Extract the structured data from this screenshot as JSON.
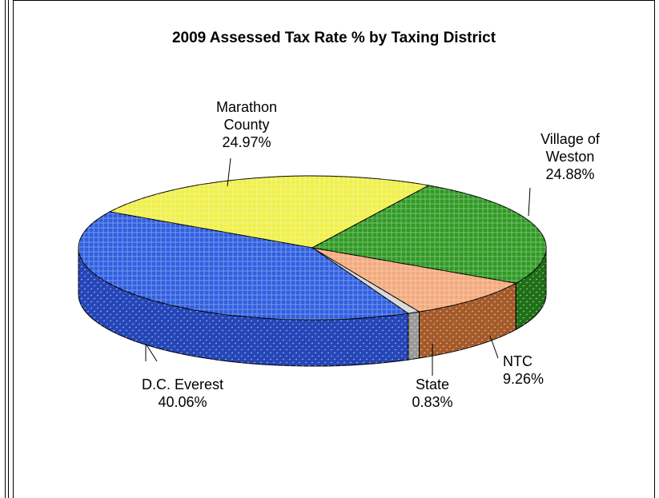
{
  "chart_data": {
    "type": "pie",
    "title": "2009 Assessed Tax Rate % by Taxing District",
    "slices": [
      {
        "name": "Marathon County",
        "label_lines": [
          "Marathon",
          "County"
        ],
        "value": 24.97,
        "value_label": "24.97%",
        "color": "#f0f04a",
        "side_color": "#c8c836"
      },
      {
        "name": "Village of Weston",
        "label_lines": [
          "Village of",
          "Weston"
        ],
        "value": 24.88,
        "value_label": "24.88%",
        "color": "#2f9a24",
        "side_color": "#1f6f16"
      },
      {
        "name": "NTC",
        "label_lines": [
          "NTC"
        ],
        "value": 9.26,
        "value_label": "9.26%",
        "color": "#f3a97c",
        "side_color": "#a55a2a"
      },
      {
        "name": "State",
        "label_lines": [
          "State"
        ],
        "value": 0.83,
        "value_label": "0.83%",
        "color": "#d6d6d6",
        "side_color": "#9a9a9a"
      },
      {
        "name": "D.C. Everest",
        "label_lines": [
          "D.C. Everest"
        ],
        "value": 40.06,
        "value_label": "40.06%",
        "color": "#2f5fe0",
        "side_color": "#2546b8"
      }
    ]
  }
}
